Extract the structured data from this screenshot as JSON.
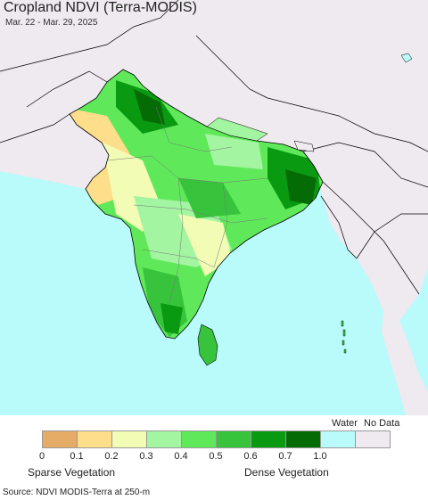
{
  "header": {
    "title": "Cropland NDVI (Terra-MODIS)",
    "date_range": "Mar. 22 - Mar. 29, 2025"
  },
  "legend": {
    "water_label": "Water",
    "nodata_label": "No Data",
    "sparse_label": "Sparse Vegetation",
    "dense_label": "Dense Vegetation",
    "ticks": [
      "0",
      "0.1",
      "0.2",
      "0.3",
      "0.4",
      "0.5",
      "0.6",
      "0.7",
      "1.0"
    ],
    "colors": [
      "#e5ac68",
      "#fddf8b",
      "#f2fcb4",
      "#a3f5a1",
      "#5fe95a",
      "#37c43c",
      "#0a9a12",
      "#056b05",
      "#b9fbfb",
      "#efe9f0"
    ]
  },
  "colors": {
    "ocean": "#b9fbfb",
    "nodata_land": "#efe9f0",
    "border": "#000000"
  },
  "footer": {
    "source": "Source: NDVI MODIS-Terra at 250-m"
  }
}
